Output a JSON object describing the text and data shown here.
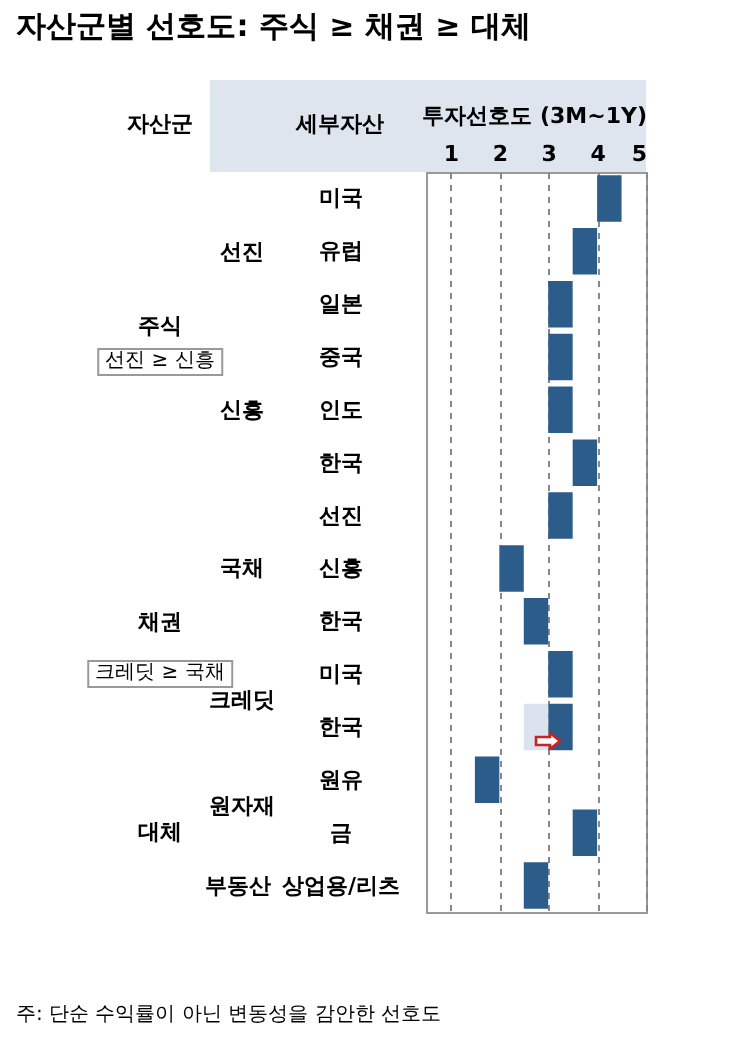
{
  "chart_data": {
    "type": "bar",
    "orientation": "horizontal",
    "title": "자산군별 선호도: 주식 ≥ 채권 ≥ 대체",
    "xlabel": "투자선호도 (3M~1Y)",
    "categories": [
      "미국",
      "유럽",
      "일본",
      "중국",
      "인도",
      "한국",
      "선진",
      "신흥",
      "한국",
      "미국",
      "한국",
      "원유",
      "금",
      "상업용/리츠"
    ],
    "series": [
      {
        "color": "#2c5c8a",
        "values": [
          0.5,
          0.5,
          0.5,
          0.5,
          0.5,
          0.5,
          0.5,
          0.5,
          0.5,
          0.5,
          0.5,
          0.5,
          0.5,
          0.5
        ],
        "base": [
          4,
          3.5,
          3,
          3,
          3,
          3.5,
          3,
          2,
          2.5,
          3,
          3,
          1.5,
          3.5,
          2.5
        ]
      },
      {
        "color": "#dce3ee",
        "values": [
          null,
          null,
          null,
          null,
          null,
          null,
          null,
          null,
          null,
          null,
          0.5,
          null,
          null,
          null
        ],
        "base": [
          null,
          null,
          null,
          null,
          null,
          null,
          null,
          null,
          null,
          null,
          2.5,
          null,
          null,
          null
        ]
      }
    ],
    "xlim": [
      0.5,
      5
    ],
    "xticks": [
      1,
      2,
      3,
      4,
      5
    ],
    "grid": "x",
    "annotations": [
      "자산군",
      "세부자산",
      "주식",
      "선진 ≥ 신흥",
      "채권",
      "크레딧 ≥ 국채",
      "대체",
      "선진",
      "신흥",
      "국채",
      "크레딧",
      "원자재",
      "부동산",
      "주: 단순 수익률이 아닌 변동성을 감안한 선호도"
    ]
  }
}
